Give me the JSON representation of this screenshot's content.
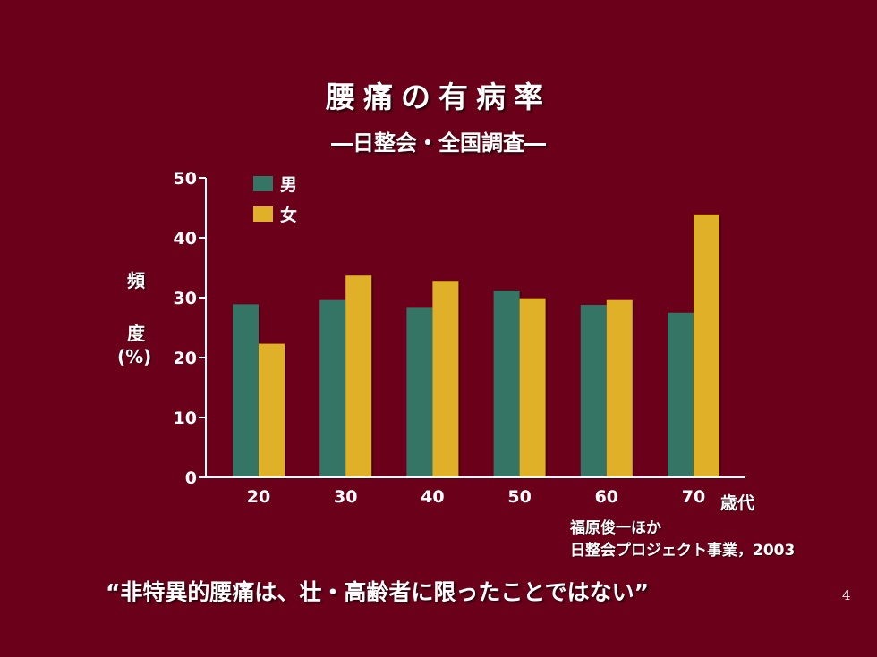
{
  "slide": {
    "title": "腰痛の有病率",
    "subtitle": "―日整会・全国調査―",
    "ylabel_chars": [
      "頻",
      "度",
      "(%)"
    ],
    "xunit": "歳代",
    "source_line1": "福原俊一ほか",
    "source_line2": "日整会プロジェクト事業，2003",
    "quote": "“非特異的腰痛は、壮・高齢者に限ったことではない”",
    "page_number": "4"
  },
  "chart_data": {
    "type": "bar",
    "categories": [
      "20",
      "30",
      "40",
      "50",
      "60",
      "70"
    ],
    "series": [
      {
        "name": "男",
        "color": "#357565",
        "values": [
          28.9,
          29.6,
          28.3,
          31.2,
          28.8,
          27.5
        ]
      },
      {
        "name": "女",
        "color": "#e0b028",
        "values": [
          22.3,
          33.7,
          32.8,
          29.9,
          29.6,
          43.9
        ]
      }
    ],
    "yticks": [
      0,
      10,
      20,
      30,
      40,
      50
    ],
    "ylim": [
      0,
      50
    ],
    "legend": "top-left",
    "grid": false
  }
}
